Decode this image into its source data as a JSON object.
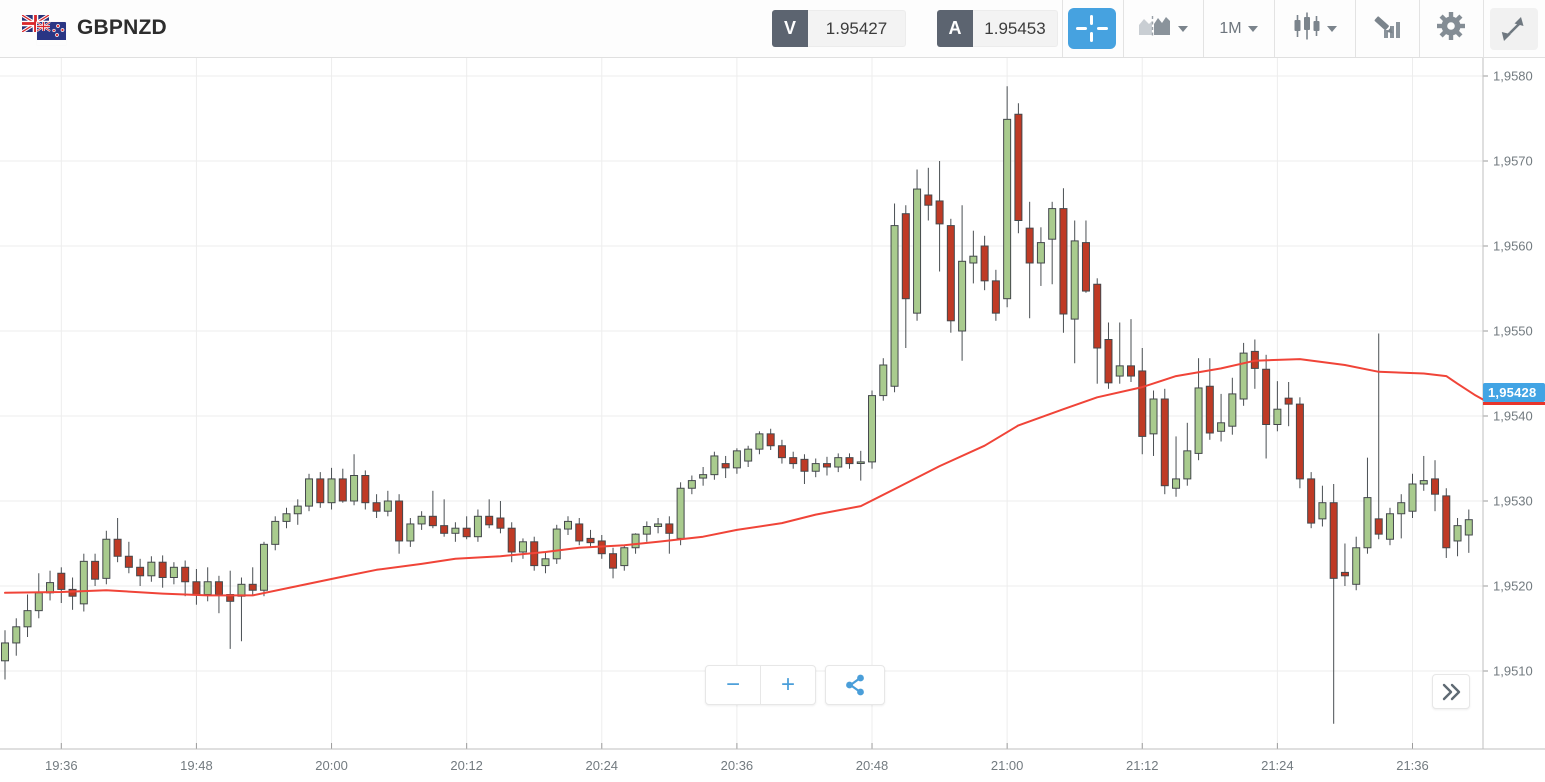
{
  "header": {
    "symbol": "GBPNZD",
    "bid_badge": "V",
    "bid": "1.95427",
    "ask_badge": "A",
    "ask": "1.95453",
    "interval": "1M"
  },
  "controls": {
    "zoom_out": "−",
    "zoom_in": "+"
  },
  "price_marker": {
    "label": "1,95428"
  },
  "chart_data": {
    "type": "candlestick",
    "pair": "GBPNZD",
    "interval": "1m",
    "start_time": "19:31",
    "end_time": "21:41",
    "ylim": [
      1.9505,
      1.9582
    ],
    "grid": true,
    "overlay": "moving-average",
    "y_ticks": [
      {
        "price": 1.958,
        "label": "1,9580"
      },
      {
        "price": 1.957,
        "label": "1,9570"
      },
      {
        "price": 1.956,
        "label": "1,9560"
      },
      {
        "price": 1.955,
        "label": "1,9550"
      },
      {
        "price": 1.954,
        "label": "1,9540"
      },
      {
        "price": 1.953,
        "label": "1,9530"
      },
      {
        "price": 1.952,
        "label": "1,9520"
      },
      {
        "price": 1.951,
        "label": "1,9510"
      }
    ],
    "x_ticks": [
      {
        "m": 5,
        "label": "19:36"
      },
      {
        "m": 17,
        "label": "19:48"
      },
      {
        "m": 29,
        "label": "20:00"
      },
      {
        "m": 41,
        "label": "20:12"
      },
      {
        "m": 53,
        "label": "20:24"
      },
      {
        "m": 65,
        "label": "20:36"
      },
      {
        "m": 77,
        "label": "20:48"
      },
      {
        "m": 89,
        "label": "21:00"
      },
      {
        "m": 101,
        "label": "21:12"
      },
      {
        "m": 113,
        "label": "21:24"
      },
      {
        "m": 125,
        "label": "21:36"
      }
    ],
    "candles": [
      [
        1.95112,
        1.95148,
        1.9509,
        1.95133
      ],
      [
        1.95133,
        1.95162,
        1.95118,
        1.95152
      ],
      [
        1.95152,
        1.9519,
        1.9514,
        1.95171
      ],
      [
        1.95171,
        1.95215,
        1.95162,
        1.95192
      ],
      [
        1.95192,
        1.95218,
        1.95183,
        1.95204
      ],
      [
        1.95215,
        1.95222,
        1.9518,
        1.95196
      ],
      [
        1.95196,
        1.9521,
        1.95172,
        1.95188
      ],
      [
        1.95179,
        1.95238,
        1.9517,
        1.95229
      ],
      [
        1.95229,
        1.95238,
        1.952,
        1.95208
      ],
      [
        1.95209,
        1.95265,
        1.95202,
        1.95255
      ],
      [
        1.95255,
        1.9528,
        1.95228,
        1.95235
      ],
      [
        1.95235,
        1.95252,
        1.95215,
        1.95222
      ],
      [
        1.95222,
        1.95232,
        1.952,
        1.95212
      ],
      [
        1.95212,
        1.95235,
        1.95205,
        1.95228
      ],
      [
        1.95228,
        1.95236,
        1.95198,
        1.9521
      ],
      [
        1.9521,
        1.95228,
        1.95202,
        1.95222
      ],
      [
        1.95222,
        1.9523,
        1.95188,
        1.95205
      ],
      [
        1.95205,
        1.9522,
        1.95178,
        1.9519
      ],
      [
        1.9519,
        1.95222,
        1.95182,
        1.95205
      ],
      [
        1.95205,
        1.95212,
        1.95168,
        1.9519
      ],
      [
        1.9519,
        1.95218,
        1.95126,
        1.95182
      ],
      [
        1.95188,
        1.9521,
        1.95135,
        1.95202
      ],
      [
        1.95202,
        1.95222,
        1.9519,
        1.95195
      ],
      [
        1.95195,
        1.95252,
        1.95188,
        1.95249
      ],
      [
        1.95249,
        1.95282,
        1.95242,
        1.95276
      ],
      [
        1.95276,
        1.95292,
        1.95268,
        1.95285
      ],
      [
        1.95285,
        1.95302,
        1.95272,
        1.95294
      ],
      [
        1.95294,
        1.95332,
        1.95288,
        1.95326
      ],
      [
        1.95326,
        1.95334,
        1.95292,
        1.95298
      ],
      [
        1.95298,
        1.95339,
        1.9529,
        1.95326
      ],
      [
        1.95326,
        1.95338,
        1.95298,
        1.953
      ],
      [
        1.953,
        1.95355,
        1.95295,
        1.9533
      ],
      [
        1.9533,
        1.95336,
        1.9529,
        1.95298
      ],
      [
        1.95298,
        1.95308,
        1.9528,
        1.95288
      ],
      [
        1.95288,
        1.95312,
        1.95282,
        1.953
      ],
      [
        1.953,
        1.95308,
        1.95238,
        1.95253
      ],
      [
        1.95253,
        1.9528,
        1.95246,
        1.95273
      ],
      [
        1.95273,
        1.95288,
        1.95266,
        1.95282
      ],
      [
        1.95282,
        1.95312,
        1.95268,
        1.95271
      ],
      [
        1.95271,
        1.95302,
        1.95258,
        1.95262
      ],
      [
        1.95262,
        1.95275,
        1.95252,
        1.95268
      ],
      [
        1.95268,
        1.95282,
        1.95255,
        1.95258
      ],
      [
        1.95258,
        1.9529,
        1.95252,
        1.95282
      ],
      [
        1.95282,
        1.95302,
        1.95268,
        1.95272
      ],
      [
        1.9528,
        1.953,
        1.95262,
        1.95268
      ],
      [
        1.95268,
        1.95275,
        1.95228,
        1.9524
      ],
      [
        1.9524,
        1.95256,
        1.95232,
        1.95252
      ],
      [
        1.95252,
        1.95258,
        1.95218,
        1.95224
      ],
      [
        1.95224,
        1.9524,
        1.95215,
        1.95232
      ],
      [
        1.95232,
        1.95272,
        1.95226,
        1.95267
      ],
      [
        1.95267,
        1.95282,
        1.9526,
        1.95276
      ],
      [
        1.95273,
        1.9528,
        1.95248,
        1.95253
      ],
      [
        1.95256,
        1.95266,
        1.95245,
        1.95251
      ],
      [
        1.95253,
        1.9526,
        1.95232,
        1.95238
      ],
      [
        1.95238,
        1.95245,
        1.95209,
        1.95221
      ],
      [
        1.95224,
        1.95248,
        1.95218,
        1.95245
      ],
      [
        1.95245,
        1.95262,
        1.95238,
        1.95261
      ],
      [
        1.95261,
        1.95276,
        1.95252,
        1.9527
      ],
      [
        1.9527,
        1.9528,
        1.95262,
        1.95273
      ],
      [
        1.95273,
        1.95282,
        1.95238,
        1.95262
      ],
      [
        1.95256,
        1.95322,
        1.95248,
        1.95315
      ],
      [
        1.95315,
        1.9533,
        1.95308,
        1.95324
      ],
      [
        1.95327,
        1.9534,
        1.95318,
        1.95331
      ],
      [
        1.95331,
        1.95358,
        1.95325,
        1.95353
      ],
      [
        1.95344,
        1.95353,
        1.95327,
        1.95339
      ],
      [
        1.95339,
        1.95362,
        1.95332,
        1.95359
      ],
      [
        1.95347,
        1.95365,
        1.9534,
        1.95361
      ],
      [
        1.95361,
        1.95382,
        1.95355,
        1.95379
      ],
      [
        1.95379,
        1.95385,
        1.9536,
        1.95365
      ],
      [
        1.95365,
        1.95372,
        1.95344,
        1.95351
      ],
      [
        1.95351,
        1.95358,
        1.95338,
        1.95344
      ],
      [
        1.95349,
        1.95355,
        1.9532,
        1.95335
      ],
      [
        1.95335,
        1.9535,
        1.95328,
        1.95344
      ],
      [
        1.95344,
        1.95352,
        1.9533,
        1.9534
      ],
      [
        1.9534,
        1.95356,
        1.95334,
        1.95351
      ],
      [
        1.95351,
        1.95356,
        1.95338,
        1.95344
      ],
      [
        1.95345,
        1.95359,
        1.95324,
        1.95346
      ],
      [
        1.95346,
        1.9543,
        1.95338,
        1.95424
      ],
      [
        1.95424,
        1.95468,
        1.95418,
        1.9546
      ],
      [
        1.95435,
        1.9565,
        1.95428,
        1.95624
      ],
      [
        1.95638,
        1.95648,
        1.9548,
        1.95538
      ],
      [
        1.95521,
        1.9569,
        1.95512,
        1.95667
      ],
      [
        1.9566,
        1.95692,
        1.9563,
        1.95648
      ],
      [
        1.95653,
        1.957,
        1.9557,
        1.95626
      ],
      [
        1.95624,
        1.95632,
        1.95498,
        1.95512
      ],
      [
        1.955,
        1.95648,
        1.95465,
        1.95582
      ],
      [
        1.9558,
        1.95618,
        1.95556,
        1.95588
      ],
      [
        1.956,
        1.95612,
        1.95548,
        1.95559
      ],
      [
        1.95559,
        1.95572,
        1.95512,
        1.95521
      ],
      [
        1.95538,
        1.95788,
        1.95528,
        1.95749
      ],
      [
        1.95755,
        1.95768,
        1.95615,
        1.9563
      ],
      [
        1.95621,
        1.95652,
        1.95515,
        1.9558
      ],
      [
        1.9558,
        1.95622,
        1.95553,
        1.95604
      ],
      [
        1.95608,
        1.95652,
        1.95555,
        1.95644
      ],
      [
        1.95644,
        1.95668,
        1.95498,
        1.9552
      ],
      [
        1.95514,
        1.9563,
        1.95462,
        1.95606
      ],
      [
        1.95604,
        1.9563,
        1.95545,
        1.95547
      ],
      [
        1.95555,
        1.95562,
        1.95438,
        1.9548
      ],
      [
        1.9549,
        1.9551,
        1.95432,
        1.95439
      ],
      [
        1.95447,
        1.9551,
        1.95438,
        1.95459
      ],
      [
        1.95459,
        1.95514,
        1.9544,
        1.95447
      ],
      [
        1.95453,
        1.9548,
        1.95355,
        1.95376
      ],
      [
        1.95379,
        1.9543,
        1.95353,
        1.9542
      ],
      [
        1.9542,
        1.95432,
        1.95308,
        1.95318
      ],
      [
        1.95315,
        1.95376,
        1.95305,
        1.95326
      ],
      [
        1.95326,
        1.95392,
        1.95318,
        1.95359
      ],
      [
        1.95356,
        1.95468,
        1.95348,
        1.95433
      ],
      [
        1.95435,
        1.95468,
        1.95372,
        1.9538
      ],
      [
        1.95382,
        1.95426,
        1.9537,
        1.95392
      ],
      [
        1.95388,
        1.95445,
        1.95378,
        1.95426
      ],
      [
        1.9542,
        1.95486,
        1.95412,
        1.95474
      ],
      [
        1.95476,
        1.9549,
        1.95432,
        1.95456
      ],
      [
        1.95455,
        1.95472,
        1.9535,
        1.9539
      ],
      [
        1.9539,
        1.95441,
        1.95382,
        1.95408
      ],
      [
        1.95421,
        1.9544,
        1.95388,
        1.95414
      ],
      [
        1.95414,
        1.95422,
        1.95315,
        1.95326
      ],
      [
        1.95326,
        1.95334,
        1.95268,
        1.95274
      ],
      [
        1.95279,
        1.95318,
        1.9527,
        1.95298
      ],
      [
        1.95298,
        1.9532,
        1.95038,
        1.95209
      ],
      [
        1.95216,
        1.9525,
        1.952,
        1.95212
      ],
      [
        1.95202,
        1.95258,
        1.95195,
        1.95245
      ],
      [
        1.95245,
        1.95351,
        1.95238,
        1.95304
      ],
      [
        1.95279,
        1.95497,
        1.95255,
        1.95261
      ],
      [
        1.95255,
        1.95292,
        1.95248,
        1.95285
      ],
      [
        1.95285,
        1.95308,
        1.95256,
        1.95298
      ],
      [
        1.95288,
        1.95332,
        1.9528,
        1.9532
      ],
      [
        1.9532,
        1.95353,
        1.95312,
        1.95324
      ],
      [
        1.95326,
        1.95348,
        1.95288,
        1.95308
      ],
      [
        1.95306,
        1.95315,
        1.95233,
        1.95245
      ],
      [
        1.95253,
        1.9528,
        1.95235,
        1.95271
      ],
      [
        1.9526,
        1.9529,
        1.95239,
        1.95278
      ]
    ],
    "ma": [
      [
        0,
        1.95192
      ],
      [
        5,
        1.95193
      ],
      [
        9,
        1.95195
      ],
      [
        14,
        1.95191
      ],
      [
        18,
        1.95189
      ],
      [
        22,
        1.95189
      ],
      [
        26,
        1.952
      ],
      [
        30,
        1.95211
      ],
      [
        33,
        1.95219
      ],
      [
        37,
        1.95226
      ],
      [
        40,
        1.95232
      ],
      [
        44,
        1.95235
      ],
      [
        48,
        1.9524
      ],
      [
        51,
        1.95245
      ],
      [
        55,
        1.95248
      ],
      [
        58,
        1.95252
      ],
      [
        62,
        1.95258
      ],
      [
        65,
        1.95266
      ],
      [
        69,
        1.95274
      ],
      [
        72,
        1.95284
      ],
      [
        76,
        1.95294
      ],
      [
        79,
        1.95314
      ],
      [
        83,
        1.95341
      ],
      [
        87,
        1.95365
      ],
      [
        90,
        1.95389
      ],
      [
        94,
        1.95408
      ],
      [
        97,
        1.95422
      ],
      [
        101,
        1.95434
      ],
      [
        104,
        1.95447
      ],
      [
        108,
        1.95456
      ],
      [
        111,
        1.95465
      ],
      [
        115,
        1.95467
      ],
      [
        119,
        1.9546
      ],
      [
        122,
        1.95452
      ],
      [
        126,
        1.9545
      ],
      [
        128,
        1.95447
      ],
      [
        129,
        1.95438
      ],
      [
        130.5,
        1.95425
      ],
      [
        131.3,
        1.95419
      ]
    ],
    "colors": {
      "up": "#a9cb8e",
      "down": "#bf3a25",
      "candle_border": "#44484c",
      "wick": "#4a4f53",
      "ma": "#f04438",
      "grid": "#ededed",
      "axis_line": "#bfbfbf",
      "tick": "#9b9b9b",
      "tick_text": "#737b80",
      "price_label_bg": "#42a4e4",
      "price_underline": "#e8352c"
    }
  }
}
